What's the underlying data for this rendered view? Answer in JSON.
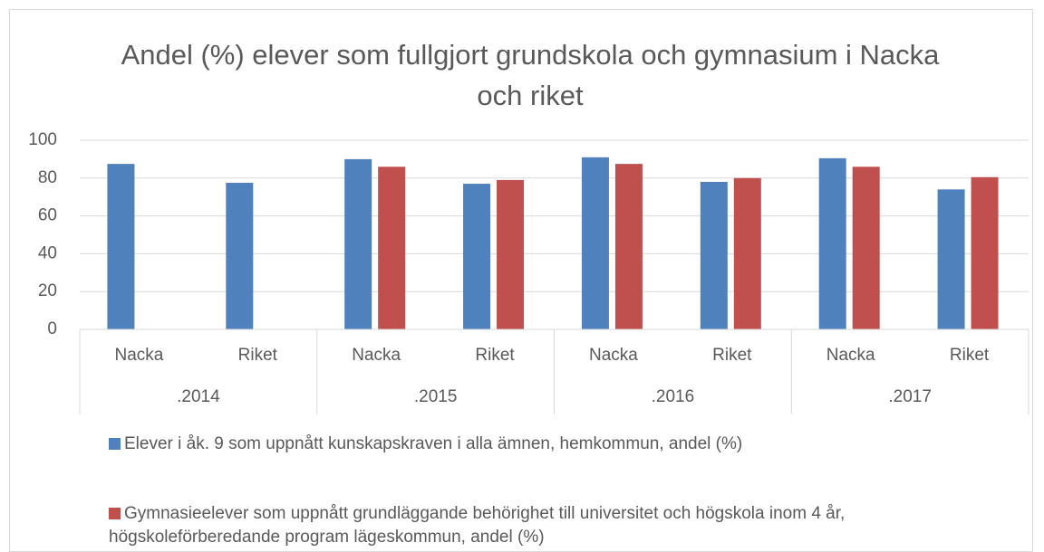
{
  "chart_data": {
    "type": "bar",
    "title": "Andel (%) elever som fullgjort grundskola och gymnasium i Nacka och riket",
    "categories": [
      "Nacka",
      "Riket",
      "Nacka",
      "Riket",
      "Nacka",
      "Riket",
      "Nacka",
      "Riket"
    ],
    "groups": [
      ".2014",
      ".2015",
      ".2016",
      ".2017"
    ],
    "series": [
      {
        "name": "Elever i åk. 9 som uppnått kunskapskraven i alla ämnen, hemkommun, andel (%)",
        "color": "#4f81bd",
        "values": [
          87.5,
          77.5,
          90,
          77,
          91,
          78,
          90.5,
          74
        ]
      },
      {
        "name": "Gymnasieelever som uppnått grundläggande behörighet till universitet och högskola inom 4 år, högskoleförberedande program lägeskommun, andel (%)",
        "color": "#c0504d",
        "values": [
          null,
          null,
          86,
          79,
          87.5,
          80,
          86,
          80.5
        ]
      }
    ],
    "ylim": [
      0,
      100
    ],
    "yticks": [
      0,
      20,
      40,
      60,
      80,
      100
    ],
    "grid": true,
    "legend": "bottom"
  }
}
